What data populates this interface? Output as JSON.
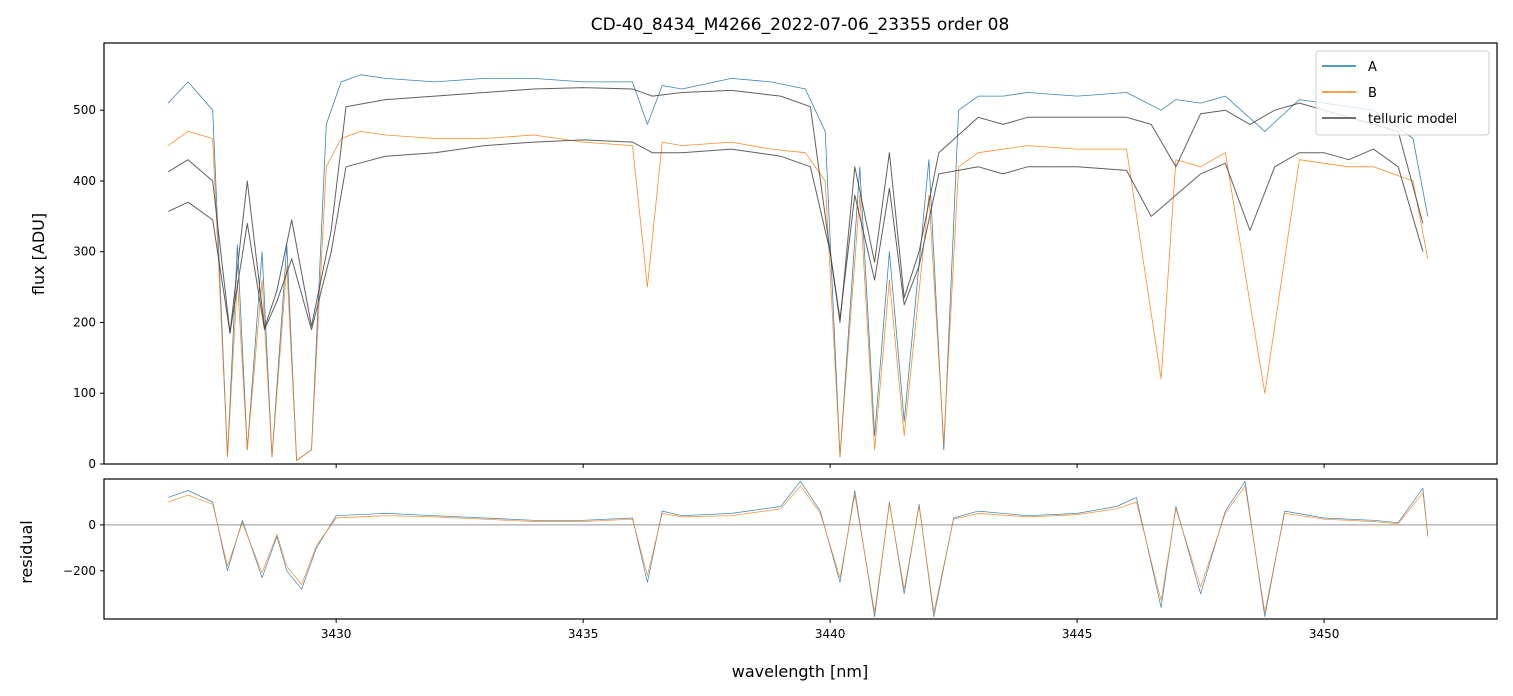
{
  "chart_data": [
    {
      "type": "line",
      "title": "CD-40_8434_M4266_2022-07-06_23355  order 08",
      "xlabel": "",
      "ylabel": "flux [ADU]",
      "xlim": [
        3425.3,
        3453.5
      ],
      "ylim": [
        0,
        595
      ],
      "xticks": [
        3430,
        3435,
        3440,
        3445,
        3450
      ],
      "yticks": [
        0,
        100,
        200,
        300,
        400,
        500
      ],
      "grid": false,
      "legend_position": "top-right",
      "series": [
        {
          "name": "A",
          "color": "#1f77b4",
          "x": [
            3426.6,
            3427.0,
            3427.5,
            3427.8,
            3428.0,
            3428.2,
            3428.5,
            3428.7,
            3429.0,
            3429.2,
            3429.5,
            3429.8,
            3430.1,
            3430.5,
            3431.0,
            3432.0,
            3433.0,
            3434.0,
            3435.0,
            3436.0,
            3436.3,
            3436.6,
            3437.0,
            3438.0,
            3438.8,
            3439.5,
            3439.9,
            3440.2,
            3440.6,
            3440.9,
            3441.2,
            3441.5,
            3442.0,
            3442.3,
            3442.6,
            3443.0,
            3443.5,
            3444.0,
            3445.0,
            3446.0,
            3446.7,
            3447.0,
            3447.5,
            3448.0,
            3448.8,
            3449.5,
            3450.0,
            3450.5,
            3451.0,
            3451.8,
            3452.1
          ],
          "y": [
            510,
            540,
            500,
            10,
            310,
            20,
            300,
            10,
            310,
            5,
            20,
            480,
            540,
            550,
            545,
            540,
            545,
            545,
            540,
            540,
            480,
            535,
            530,
            545,
            540,
            530,
            470,
            10,
            420,
            40,
            300,
            60,
            430,
            20,
            500,
            520,
            520,
            525,
            520,
            525,
            500,
            515,
            510,
            520,
            470,
            515,
            510,
            505,
            500,
            460,
            350
          ]
        },
        {
          "name": "B",
          "color": "#ff7f0e",
          "x": [
            3426.6,
            3427.0,
            3427.5,
            3427.8,
            3428.0,
            3428.2,
            3428.5,
            3428.7,
            3429.0,
            3429.2,
            3429.5,
            3429.8,
            3430.1,
            3430.5,
            3431.0,
            3432.0,
            3433.0,
            3434.0,
            3435.0,
            3436.0,
            3436.3,
            3436.6,
            3437.0,
            3438.0,
            3438.8,
            3439.5,
            3439.9,
            3440.2,
            3440.6,
            3440.9,
            3441.2,
            3441.5,
            3442.0,
            3442.3,
            3442.6,
            3443.0,
            3443.5,
            3444.0,
            3445.0,
            3446.0,
            3446.7,
            3447.0,
            3447.5,
            3448.0,
            3448.8,
            3449.5,
            3450.0,
            3450.5,
            3451.0,
            3451.8,
            3452.1
          ],
          "y": [
            450,
            470,
            460,
            10,
            260,
            20,
            260,
            10,
            280,
            5,
            20,
            420,
            460,
            470,
            465,
            460,
            460,
            465,
            455,
            450,
            250,
            455,
            450,
            455,
            445,
            440,
            400,
            10,
            380,
            20,
            260,
            40,
            380,
            30,
            420,
            440,
            445,
            450,
            445,
            445,
            120,
            430,
            420,
            440,
            100,
            430,
            425,
            420,
            420,
            400,
            290
          ]
        },
        {
          "name": "telluric model",
          "color": "#444444",
          "x": [
            3426.6,
            3427.0,
            3427.5,
            3427.85,
            3428.2,
            3428.55,
            3428.8,
            3429.1,
            3429.5,
            3429.9,
            3430.2,
            3431.0,
            3432.0,
            3433.0,
            3434.0,
            3435.0,
            3436.0,
            3436.4,
            3437.0,
            3438.0,
            3439.0,
            3439.6,
            3440.0,
            3440.2,
            3440.5,
            3440.9,
            3441.2,
            3441.5,
            3441.8,
            3442.2,
            3443.0,
            3443.5,
            3444.0,
            3445.0,
            3446.0,
            3446.5,
            3447.0,
            3447.5,
            3448.0,
            3448.5,
            3449.0,
            3449.5,
            3450.0,
            3450.5,
            3451.0,
            3451.5,
            3452.0
          ],
          "y": [
            413,
            430,
            400,
            185,
            400,
            192,
            245,
            345,
            195,
            330,
            505,
            515,
            520,
            525,
            530,
            532,
            530,
            520,
            525,
            528,
            520,
            505,
            300,
            200,
            420,
            285,
            440,
            235,
            300,
            440,
            490,
            480,
            490,
            490,
            490,
            480,
            420,
            495,
            500,
            480,
            500,
            510,
            500,
            490,
            480,
            470,
            340
          ]
        },
        {
          "name": "telluric model",
          "color": "#444444",
          "x": [
            3426.6,
            3427.0,
            3427.5,
            3427.85,
            3428.2,
            3428.55,
            3428.8,
            3429.1,
            3429.5,
            3429.9,
            3430.2,
            3431.0,
            3432.0,
            3433.0,
            3434.0,
            3435.0,
            3436.0,
            3436.4,
            3437.0,
            3438.0,
            3439.0,
            3439.6,
            3440.0,
            3440.2,
            3440.5,
            3440.9,
            3441.2,
            3441.5,
            3441.8,
            3442.2,
            3443.0,
            3443.5,
            3444.0,
            3445.0,
            3446.0,
            3446.5,
            3447.0,
            3447.5,
            3448.0,
            3448.5,
            3449.0,
            3449.5,
            3450.0,
            3450.5,
            3451.0,
            3451.5,
            3452.0
          ],
          "y": [
            357,
            370,
            345,
            185,
            340,
            190,
            230,
            290,
            190,
            300,
            420,
            435,
            440,
            450,
            455,
            458,
            455,
            440,
            440,
            445,
            435,
            420,
            300,
            205,
            380,
            260,
            390,
            225,
            280,
            410,
            420,
            410,
            420,
            420,
            415,
            350,
            380,
            410,
            425,
            330,
            420,
            440,
            440,
            430,
            445,
            420,
            300
          ]
        }
      ]
    },
    {
      "type": "line",
      "title": "",
      "xlabel": "wavelength [nm]",
      "ylabel": "residual",
      "xlim": [
        3425.3,
        3453.5
      ],
      "ylim": [
        -410,
        200
      ],
      "xticks": [
        3430,
        3435,
        3440,
        3445,
        3450
      ],
      "yticks": [
        -200,
        0
      ],
      "grid": false,
      "reference_line": 0,
      "series": [
        {
          "name": "A",
          "color": "#1f77b4",
          "x": [
            3426.6,
            3427.0,
            3427.5,
            3427.8,
            3428.1,
            3428.5,
            3428.8,
            3429.0,
            3429.3,
            3429.6,
            3430.0,
            3431.0,
            3432.0,
            3433.0,
            3434.0,
            3435.0,
            3436.0,
            3436.3,
            3436.6,
            3437.0,
            3438.0,
            3439.0,
            3439.4,
            3439.8,
            3440.2,
            3440.5,
            3440.9,
            3441.2,
            3441.5,
            3441.8,
            3442.1,
            3442.5,
            3443.0,
            3444.0,
            3445.0,
            3445.8,
            3446.2,
            3446.7,
            3447.0,
            3447.5,
            3448.0,
            3448.4,
            3448.8,
            3449.2,
            3450.0,
            3451.0,
            3451.5,
            3452.0,
            3452.1
          ],
          "y": [
            120,
            150,
            100,
            -200,
            20,
            -230,
            -50,
            -200,
            -280,
            -100,
            40,
            50,
            40,
            30,
            20,
            20,
            30,
            -250,
            60,
            40,
            50,
            80,
            190,
            60,
            -250,
            150,
            -400,
            100,
            -300,
            90,
            -400,
            30,
            60,
            40,
            50,
            80,
            120,
            -360,
            80,
            -300,
            60,
            190,
            -400,
            60,
            30,
            20,
            10,
            160,
            -50
          ]
        },
        {
          "name": "B",
          "color": "#ff7f0e",
          "x": [
            3426.6,
            3427.0,
            3427.5,
            3427.8,
            3428.1,
            3428.5,
            3428.8,
            3429.0,
            3429.3,
            3429.6,
            3430.0,
            3431.0,
            3432.0,
            3433.0,
            3434.0,
            3435.0,
            3436.0,
            3436.3,
            3436.6,
            3437.0,
            3438.0,
            3439.0,
            3439.4,
            3439.8,
            3440.2,
            3440.5,
            3440.9,
            3441.2,
            3441.5,
            3441.8,
            3442.1,
            3442.5,
            3443.0,
            3444.0,
            3445.0,
            3445.8,
            3446.2,
            3446.7,
            3447.0,
            3447.5,
            3448.0,
            3448.4,
            3448.8,
            3449.2,
            3450.0,
            3451.0,
            3451.5,
            3452.0,
            3452.1
          ],
          "y": [
            100,
            130,
            90,
            -180,
            10,
            -210,
            -40,
            -180,
            -260,
            -90,
            30,
            40,
            35,
            25,
            15,
            15,
            25,
            -220,
            50,
            35,
            40,
            70,
            170,
            50,
            -230,
            130,
            -380,
            90,
            -280,
            80,
            -380,
            25,
            50,
            35,
            45,
            70,
            100,
            -330,
            70,
            -270,
            50,
            170,
            -380,
            50,
            25,
            15,
            5,
            140,
            -40
          ]
        }
      ]
    }
  ]
}
